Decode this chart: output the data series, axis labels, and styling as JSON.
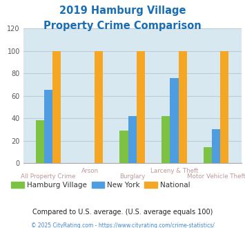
{
  "title_line1": "2019 Hamburg Village",
  "title_line2": "Property Crime Comparison",
  "title_color": "#1a6eb5",
  "categories": [
    "All Property Crime",
    "Arson",
    "Burglary",
    "Larceny & Theft",
    "Motor Vehicle Theft"
  ],
  "series": {
    "Hamburg Village": [
      38,
      0,
      29,
      42,
      14
    ],
    "New York": [
      65,
      0,
      42,
      76,
      30
    ],
    "National": [
      100,
      100,
      100,
      100,
      100
    ]
  },
  "colors": {
    "Hamburg Village": "#7dc242",
    "New York": "#4d9de0",
    "National": "#f5a623"
  },
  "ylim": [
    0,
    120
  ],
  "yticks": [
    0,
    20,
    40,
    60,
    80,
    100,
    120
  ],
  "grid_color": "#bbccdd",
  "bg_color": "#d8e8f0",
  "xlabel_color": "#bb9999",
  "xlabel_color2": "#aa8888",
  "legend_text_color": "#333333",
  "footnote1": "Compared to U.S. average. (U.S. average equals 100)",
  "footnote2": "© 2025 CityRating.com - https://www.cityrating.com/crime-statistics/",
  "footnote1_color": "#222222",
  "footnote2_color": "#4488cc"
}
